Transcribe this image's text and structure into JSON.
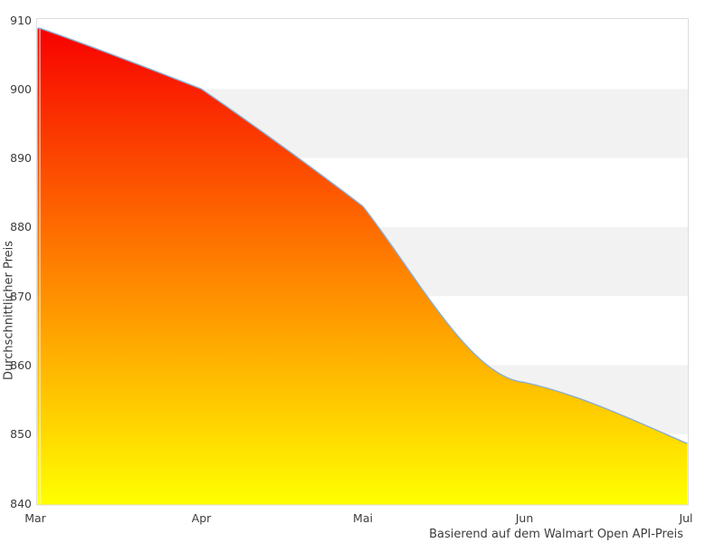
{
  "chart_data": {
    "type": "area",
    "title": "",
    "categories": [
      "Mar",
      "Apr",
      "Mai",
      "Jun",
      "Jul"
    ],
    "values": [
      908.8,
      900.0,
      883.0,
      857.5,
      848.7
    ],
    "series": [
      {
        "name": "Durchschnittlicher Preis",
        "values": [
          908.8,
          900.0,
          883.0,
          857.5,
          848.7
        ]
      }
    ],
    "xlabel": "",
    "ylabel": "Durchschnittlicher Preis",
    "caption": "Basierend auf dem Walmart Open API-Preis",
    "ylim": [
      840,
      910
    ],
    "yticks": [
      910,
      900,
      890,
      880,
      870,
      860,
      850,
      840
    ],
    "grid": "alternating-horizontal-bands",
    "band_ranges": [
      [
        890,
        900
      ],
      [
        870,
        880
      ],
      [
        850,
        860
      ]
    ],
    "legend": "none",
    "colors": {
      "fill_gradient_top": "#f80000",
      "fill_gradient_mid": "#ff8000",
      "fill_gradient_bottom": "#ffff00",
      "line": "#8badd1",
      "band": "#f2f2f2",
      "frame": "#dcdcdc",
      "axis_overlay_line": "#ffffff",
      "text": "#3d3d3d",
      "background": "#ffffff"
    }
  }
}
